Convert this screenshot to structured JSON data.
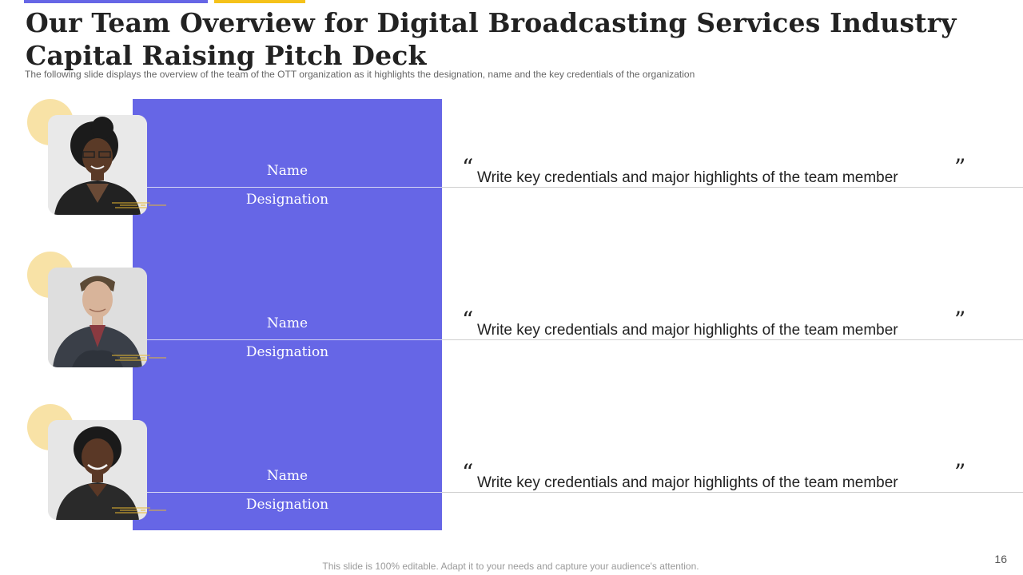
{
  "slide": {
    "title": "Our Team Overview for Digital Broadcasting Services Industry Capital Raising Pitch Deck",
    "subtitle": "The following  slide displays the overview  of the team of the OTT organization  as it highlights the designation,  name and the key credentials of the organization",
    "footer": "This slide is 100% editable. Adapt it to your needs and capture your audience's attention.",
    "page_number": "16"
  },
  "colors": {
    "accent_blue": "#6666e6",
    "accent_yellow": "#f5c21a",
    "circle_yellow": "#f8e2a6"
  },
  "members": [
    {
      "name": "Name",
      "designation": "Designation",
      "quote_open": "“",
      "credentials": "Write key credentials and major highlights  of the team member",
      "quote_close": "”"
    },
    {
      "name": "Name",
      "designation": "Designation",
      "quote_open": "“",
      "credentials": "Write key credentials and major highlights  of the team member",
      "quote_close": "”"
    },
    {
      "name": "Name",
      "designation": "Designation",
      "quote_open": "“",
      "credentials": "Write key credentials and major highlights  of the team member",
      "quote_close": "”"
    }
  ]
}
